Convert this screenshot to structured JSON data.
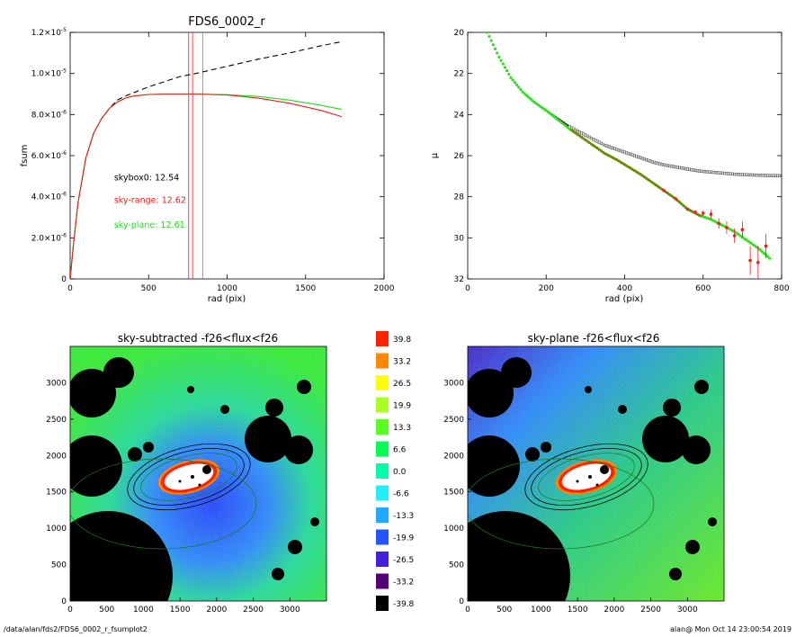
{
  "footer": {
    "path": "/data/alan/fds2/FDS6_0002_r_fsumplot2",
    "stamp": "alan@  Mon Oct 14 23:00:54 2019"
  },
  "colors": {
    "black": "#000000",
    "red": "#e8201e",
    "green": "#22dd22",
    "olive": "#6b8a00",
    "gray": "#888888"
  },
  "chart_data": [
    {
      "type": "line",
      "title": "FDS6_0002_r",
      "xlabel": "rad (pix)",
      "ylabel": "fsum",
      "xlim": [
        0,
        2000
      ],
      "ylim": [
        0,
        1.2e-05
      ],
      "xticks": [
        0,
        500,
        1000,
        1500,
        2000
      ],
      "xtick_labels": [
        "0",
        "500",
        "1000",
        "1500",
        "2000"
      ],
      "yticks": [
        0,
        2e-06,
        4e-06,
        6e-06,
        8e-06,
        1e-05,
        1.2e-05
      ],
      "ytick_labels": [
        {
          "m": "0",
          "e": ""
        },
        {
          "m": "2.0×10",
          "e": "-6"
        },
        {
          "m": "4.0×10",
          "e": "-6"
        },
        {
          "m": "6.0×10",
          "e": "-6"
        },
        {
          "m": "8.0×10",
          "e": "-6"
        },
        {
          "m": "1.0×10",
          "e": "-5"
        },
        {
          "m": "1.2×10",
          "e": "-5"
        }
      ],
      "series": [
        {
          "name": "skybox0",
          "color": "#000000",
          "dashed": true,
          "x": [
            0,
            20,
            50,
            100,
            150,
            200,
            250,
            300,
            350,
            400,
            500,
            600,
            700,
            800,
            1000,
            1200,
            1400,
            1600,
            1730
          ],
          "y": [
            0,
            1.6e-06,
            3.7e-06,
            5.9e-06,
            7.1e-06,
            7.8e-06,
            8.3e-06,
            8.7e-06,
            8.9e-06,
            9.05e-06,
            9.35e-06,
            9.6e-06,
            9.85e-06,
            1e-05,
            1.035e-05,
            1.07e-05,
            1.1e-05,
            1.135e-05,
            1.155e-05
          ]
        },
        {
          "name": "sky-plane",
          "color": "#22dd22",
          "dashed": false,
          "x": [
            0,
            20,
            50,
            100,
            150,
            200,
            250,
            300,
            350,
            400,
            500,
            600,
            700,
            800,
            1000,
            1200,
            1400,
            1600,
            1730
          ],
          "y": [
            0,
            1.6e-06,
            3.7e-06,
            5.9e-06,
            7.1e-06,
            7.8e-06,
            8.3e-06,
            8.6e-06,
            8.8e-06,
            8.9e-06,
            8.98e-06,
            9e-06,
            9e-06,
            9e-06,
            8.97e-06,
            8.88e-06,
            8.7e-06,
            8.45e-06,
            8.25e-06
          ]
        },
        {
          "name": "sky-range",
          "color": "#e8201e",
          "dashed": false,
          "x": [
            0,
            20,
            50,
            100,
            150,
            200,
            250,
            300,
            350,
            400,
            500,
            600,
            700,
            800,
            1000,
            1200,
            1400,
            1600,
            1730
          ],
          "y": [
            0,
            1.6e-06,
            3.7e-06,
            5.9e-06,
            7.1e-06,
            7.8e-06,
            8.3e-06,
            8.6e-06,
            8.8e-06,
            8.9e-06,
            8.98e-06,
            9e-06,
            9e-06,
            9e-06,
            8.95e-06,
            8.8e-06,
            8.55e-06,
            8.2e-06,
            7.9e-06
          ]
        }
      ],
      "vlines": [
        {
          "x": 755,
          "color": "#e8201e"
        },
        {
          "x": 780,
          "color": "#e8201e"
        },
        {
          "x": 845,
          "color": "#888888"
        }
      ],
      "annotations": [
        {
          "text": "skybox0: 12.54",
          "color": "#000000",
          "x": 280,
          "y": 4.8e-06
        },
        {
          "text": "sky-range: 12.62",
          "color": "#e8201e",
          "x": 280,
          "y": 3.7e-06
        },
        {
          "text": "sky-plane: 12.61",
          "color": "#22dd22",
          "x": 280,
          "y": 2.5e-06
        }
      ]
    },
    {
      "type": "scatter",
      "title": "",
      "xlabel": "rad (pix)",
      "ylabel": "μ",
      "xlim": [
        0,
        800
      ],
      "ylim": [
        32,
        20
      ],
      "xticks": [
        0,
        200,
        400,
        600,
        800
      ],
      "yticks": [
        20,
        22,
        24,
        26,
        28,
        30,
        32
      ],
      "series": [
        {
          "name": "",
          "color": "#000000",
          "x": [
            50,
            80,
            110,
            140,
            170,
            200,
            230,
            260,
            290,
            320,
            350,
            380,
            410,
            440,
            470,
            500,
            530,
            560,
            590,
            620,
            650,
            680,
            710,
            740,
            770,
            800
          ],
          "y": [
            20.0,
            21.2,
            22.2,
            22.9,
            23.4,
            23.8,
            24.2,
            24.6,
            24.9,
            25.2,
            25.5,
            25.7,
            25.9,
            26.1,
            26.3,
            26.45,
            26.55,
            26.65,
            26.75,
            26.8,
            26.85,
            26.9,
            26.93,
            26.95,
            26.97,
            26.98
          ]
        },
        {
          "name": "",
          "color": "#22dd22",
          "x": [
            50,
            80,
            110,
            140,
            170,
            200,
            230,
            260,
            290,
            320,
            350,
            380,
            410,
            440,
            470,
            500,
            530,
            560,
            590,
            620,
            650,
            680,
            710,
            740,
            770
          ],
          "y": [
            20.0,
            21.2,
            22.2,
            22.9,
            23.4,
            23.8,
            24.25,
            24.7,
            25.1,
            25.5,
            25.9,
            26.2,
            26.55,
            26.9,
            27.3,
            27.7,
            28.1,
            28.6,
            28.9,
            29.1,
            29.4,
            29.7,
            30.1,
            30.5,
            31.0
          ]
        },
        {
          "name": "",
          "color": "#e8201e",
          "x": [
            500,
            530,
            560,
            580,
            600,
            620,
            640,
            660,
            680,
            700,
            720,
            740,
            760
          ],
          "y": [
            27.7,
            28.1,
            28.6,
            28.75,
            28.8,
            28.85,
            29.3,
            29.5,
            29.9,
            29.6,
            31.1,
            31.2,
            30.4
          ]
        }
      ],
      "errorbars": {
        "x": [
          600,
          620,
          640,
          660,
          680,
          700,
          720,
          740,
          760
        ],
        "err": [
          0.15,
          0.2,
          0.25,
          0.3,
          0.35,
          0.4,
          0.7,
          0.8,
          0.6
        ]
      }
    },
    {
      "type": "heatmap",
      "title": "sky-subtracted -f26<flux<f26",
      "xlim": [
        0,
        3500
      ],
      "ylim": [
        0,
        3500
      ],
      "xticks": [
        0,
        500,
        1000,
        1500,
        2000,
        2500,
        3000
      ],
      "yticks": [
        0,
        500,
        1000,
        1500,
        2000,
        2500,
        3000
      ],
      "colorbar": {
        "labels": [
          "39.8",
          "33.2",
          "26.5",
          "19.9",
          "13.3",
          "6.6",
          "0.0",
          "-6.6",
          "-13.3",
          "-19.9",
          "-26.5",
          "-33.2",
          "-39.8"
        ],
        "colors": [
          "#ff2200",
          "#ff8800",
          "#ffff00",
          "#aaff22",
          "#55ff22",
          "#00ff55",
          "#00ffaa",
          "#22eeff",
          "#22aaff",
          "#2255ff",
          "#4422dd",
          "#550077",
          "#000000"
        ]
      }
    },
    {
      "type": "heatmap",
      "title": "sky-plane -f26<flux<f26",
      "xlim": [
        0,
        3500
      ],
      "ylim": [
        0,
        3500
      ],
      "xticks": [
        0,
        500,
        1000,
        1500,
        2000,
        2500,
        3000
      ],
      "yticks": [
        0,
        500,
        1000,
        1500,
        2000,
        2500,
        3000
      ]
    }
  ]
}
